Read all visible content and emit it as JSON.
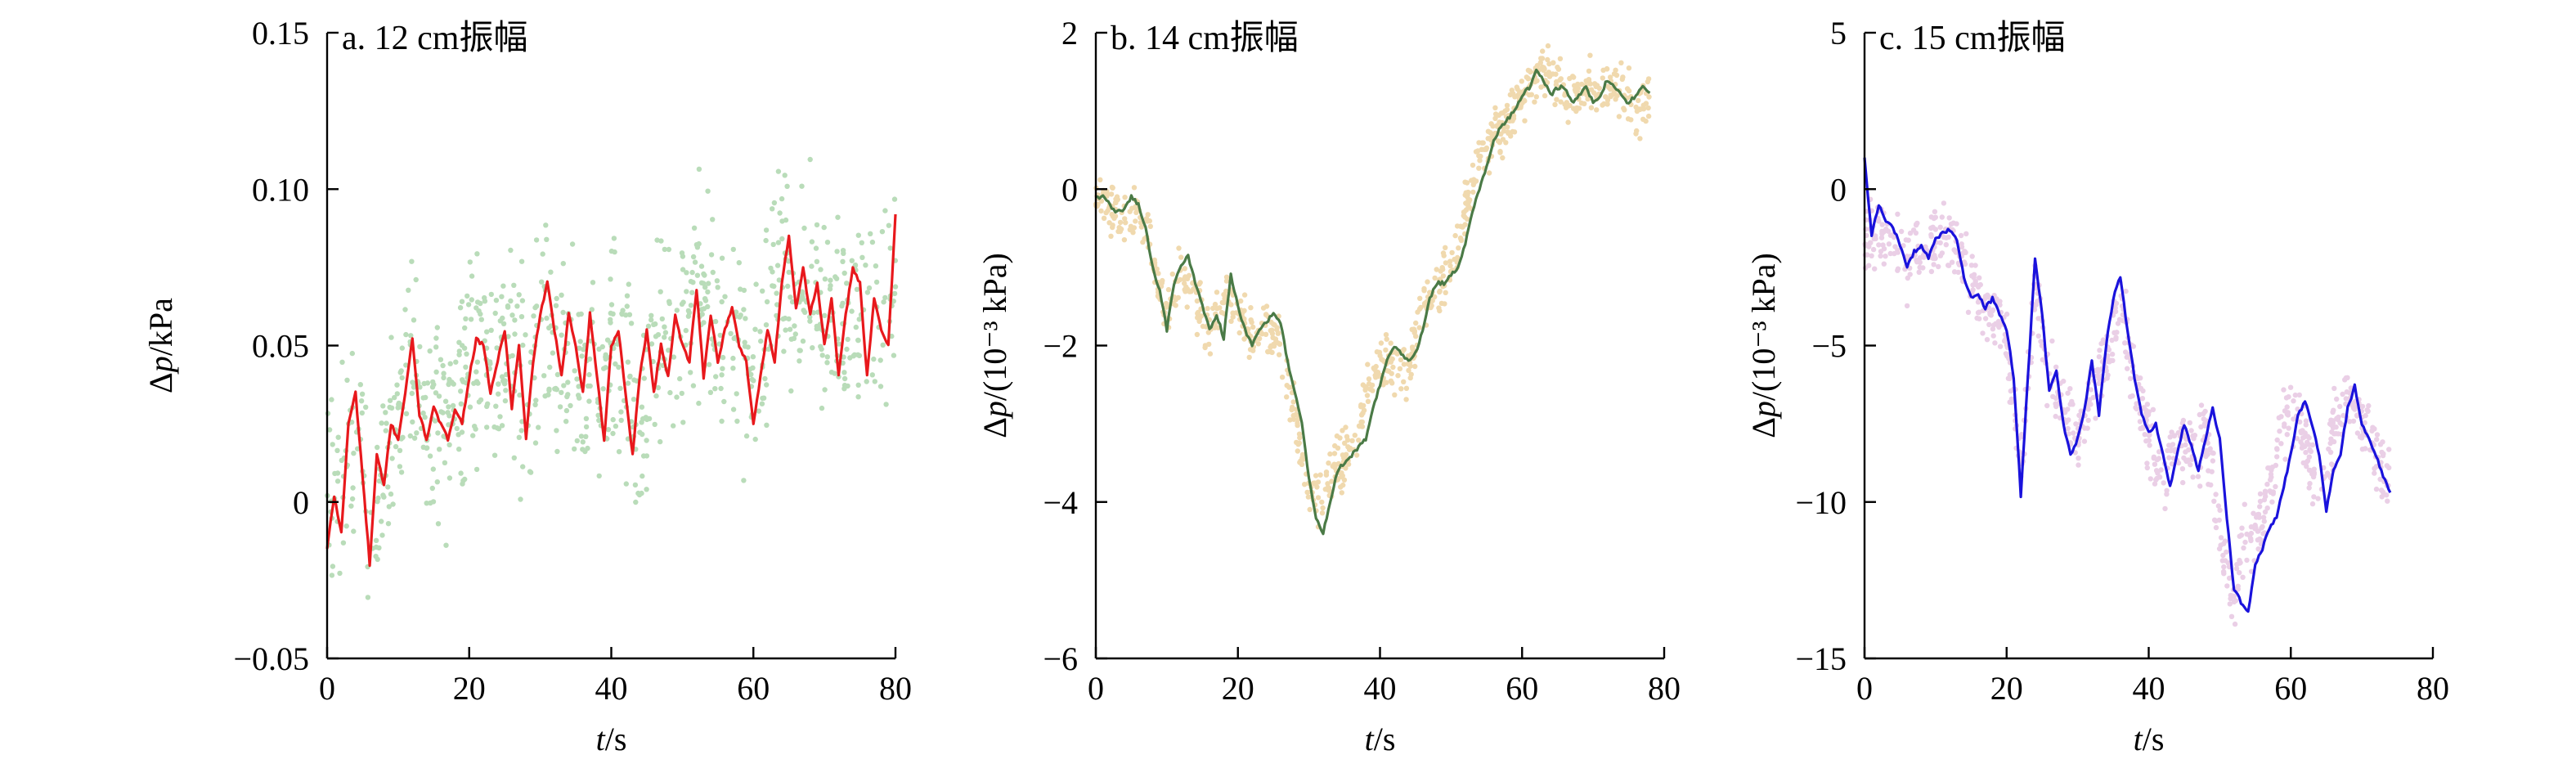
{
  "chart_data": [
    {
      "type": "line",
      "title": "a. 12 cm振幅",
      "xlabel": "t/s",
      "ylabel": "Δp/kPa",
      "xlim": [
        0,
        80
      ],
      "ylim": [
        -0.05,
        0.15
      ],
      "xticks": [
        0,
        20,
        40,
        60,
        80
      ],
      "xtick_labels": [
        "0",
        "20",
        "40",
        "60",
        "80"
      ],
      "yticks": [
        -0.05,
        0,
        0.05,
        0.1,
        0.15
      ],
      "ytick_labels": [
        "−0.05",
        "0",
        "0.05",
        "0.10",
        "0.15"
      ],
      "grid": false,
      "series": [
        {
          "kind": "raw-scatter",
          "color": "#b9dcb9",
          "x": [
            0,
            2,
            4,
            5,
            6,
            8,
            10,
            12,
            14,
            16,
            18,
            20,
            22,
            24,
            26,
            28,
            30,
            32,
            34,
            36,
            38,
            40,
            42,
            44,
            46,
            48,
            50,
            52,
            54,
            56,
            58,
            60,
            62,
            64,
            66,
            68,
            70,
            72,
            74,
            76,
            78,
            80
          ],
          "y": [
            0.0,
            0.01,
            0.025,
            0.02,
            -0.02,
            0.01,
            0.03,
            0.05,
            0.02,
            0.03,
            0.025,
            0.045,
            0.05,
            0.04,
            0.055,
            0.03,
            0.06,
            0.05,
            0.04,
            0.045,
            0.035,
            0.05,
            0.04,
            0.02,
            0.05,
            0.06,
            0.05,
            0.07,
            0.06,
            0.055,
            0.05,
            0.04,
            0.065,
            0.075,
            0.06,
            0.07,
            0.065,
            0.055,
            0.06,
            0.065,
            0.06,
            0.07
          ],
          "spread": 0.035
        },
        {
          "kind": "smoothed",
          "color": "#e8181c",
          "x": [
            0,
            1,
            2,
            3,
            4,
            5,
            6,
            7,
            8,
            9,
            10,
            11,
            12,
            13,
            14,
            15,
            16,
            17,
            18,
            19,
            20,
            21,
            22,
            23,
            24,
            25,
            26,
            27,
            28,
            29,
            30,
            31,
            32,
            33,
            34,
            35,
            36,
            37,
            38,
            39,
            40,
            41,
            42,
            43,
            44,
            45,
            46,
            47,
            48,
            49,
            50,
            51,
            52,
            53,
            54,
            55,
            56,
            57,
            58,
            59,
            60,
            61,
            62,
            63,
            64,
            65,
            66,
            67,
            68,
            69,
            70,
            71,
            72,
            73,
            74,
            75,
            76,
            77,
            78,
            79,
            80
          ],
          "y": [
            -0.015,
            0.002,
            -0.01,
            0.025,
            0.035,
            0.008,
            -0.02,
            0.015,
            0.005,
            0.025,
            0.02,
            0.035,
            0.052,
            0.028,
            0.02,
            0.03,
            0.025,
            0.02,
            0.03,
            0.025,
            0.04,
            0.052,
            0.05,
            0.035,
            0.045,
            0.055,
            0.03,
            0.05,
            0.02,
            0.045,
            0.06,
            0.07,
            0.055,
            0.04,
            0.06,
            0.05,
            0.035,
            0.06,
            0.04,
            0.02,
            0.05,
            0.055,
            0.035,
            0.015,
            0.04,
            0.055,
            0.035,
            0.05,
            0.04,
            0.06,
            0.05,
            0.045,
            0.068,
            0.04,
            0.06,
            0.045,
            0.055,
            0.062,
            0.05,
            0.045,
            0.025,
            0.04,
            0.055,
            0.045,
            0.07,
            0.085,
            0.062,
            0.075,
            0.06,
            0.07,
            0.05,
            0.065,
            0.04,
            0.06,
            0.075,
            0.07,
            0.04,
            0.065,
            0.055,
            0.05,
            0.092
          ]
        }
      ]
    },
    {
      "type": "line",
      "title": "b. 14 cm振幅",
      "xlabel": "t/s",
      "ylabel": "Δp/(10⁻³ kPa)",
      "xlim": [
        0,
        80
      ],
      "ylim": [
        -6,
        2
      ],
      "xticks": [
        0,
        20,
        40,
        60,
        80
      ],
      "xtick_labels": [
        "0",
        "20",
        "40",
        "60",
        "80"
      ],
      "yticks": [
        -6,
        -4,
        -2,
        0,
        2
      ],
      "ytick_labels": [
        "−6",
        "−4",
        "−2",
        "0",
        "2"
      ],
      "grid": false,
      "series": [
        {
          "kind": "raw-scatter",
          "color": "#f0d9ae",
          "x": [
            0,
            2,
            4,
            6,
            8,
            10,
            12,
            14,
            16,
            18,
            20,
            22,
            24,
            26,
            28,
            30,
            32,
            34,
            36,
            38,
            40,
            42,
            44,
            46,
            48,
            50,
            52,
            54,
            56,
            58,
            60,
            62,
            64,
            66,
            68,
            70,
            72,
            74,
            76,
            78
          ],
          "y": [
            -0.05,
            -0.2,
            -0.4,
            -0.3,
            -0.8,
            -1.7,
            -1.1,
            -1.4,
            -1.8,
            -1.4,
            -1.6,
            -1.9,
            -1.8,
            -2.0,
            -2.8,
            -4.0,
            -3.8,
            -3.5,
            -3.3,
            -2.7,
            -2.2,
            -2.3,
            -2.3,
            -1.4,
            -1.2,
            -1.1,
            -0.3,
            0.4,
            0.7,
            0.9,
            1.2,
            1.5,
            1.5,
            1.2,
            1.3,
            1.3,
            1.2,
            1.4,
            1.0,
            1.2
          ],
          "spread": 0.35
        },
        {
          "kind": "smoothed",
          "color": "#4a7a46",
          "x": [
            0,
            1,
            2,
            3,
            4,
            5,
            6,
            7,
            8,
            9,
            10,
            11,
            12,
            13,
            14,
            15,
            16,
            17,
            18,
            19,
            20,
            21,
            22,
            23,
            24,
            25,
            26,
            27,
            28,
            29,
            30,
            31,
            32,
            33,
            34,
            35,
            36,
            37,
            38,
            39,
            40,
            41,
            42,
            43,
            44,
            45,
            46,
            47,
            48,
            49,
            50,
            51,
            52,
            53,
            54,
            55,
            56,
            57,
            58,
            59,
            60,
            61,
            62,
            63,
            64,
            65,
            66,
            67,
            68,
            69,
            70,
            71,
            72,
            73,
            74,
            75,
            76,
            77,
            78
          ],
          "y": [
            -0.1,
            -0.1,
            -0.2,
            -0.3,
            -0.25,
            -0.1,
            -0.2,
            -0.5,
            -1.0,
            -1.3,
            -1.8,
            -1.2,
            -1.0,
            -0.85,
            -1.2,
            -1.5,
            -1.8,
            -1.6,
            -1.9,
            -1.1,
            -1.5,
            -1.8,
            -2.0,
            -1.8,
            -1.7,
            -1.6,
            -1.7,
            -2.2,
            -2.6,
            -3.0,
            -3.7,
            -4.2,
            -4.4,
            -4.0,
            -3.6,
            -3.5,
            -3.4,
            -3.3,
            -3.2,
            -2.8,
            -2.5,
            -2.2,
            -2.0,
            -2.1,
            -2.2,
            -2.1,
            -1.8,
            -1.4,
            -1.2,
            -1.2,
            -1.1,
            -1.0,
            -0.7,
            -0.3,
            0.0,
            0.3,
            0.6,
            0.8,
            0.9,
            1.0,
            1.2,
            1.3,
            1.5,
            1.4,
            1.2,
            1.3,
            1.3,
            1.1,
            1.2,
            1.3,
            1.1,
            1.2,
            1.4,
            1.3,
            1.2,
            1.1,
            1.2,
            1.3,
            1.25
          ]
        }
      ]
    },
    {
      "type": "line",
      "title": "c. 15 cm振幅",
      "xlabel": "t/s",
      "ylabel": "Δp/(10⁻³ kPa)",
      "xlim": [
        0,
        80
      ],
      "ylim": [
        -15,
        5
      ],
      "xticks": [
        0,
        20,
        40,
        60,
        80
      ],
      "xtick_labels": [
        "0",
        "20",
        "40",
        "60",
        "80"
      ],
      "yticks": [
        -15,
        -10,
        -5,
        0,
        5
      ],
      "ytick_labels": [
        "−15",
        "−10",
        "−5",
        "0",
        "5"
      ],
      "grid": false,
      "series": [
        {
          "kind": "raw-scatter",
          "color": "#eacfe6",
          "x": [
            0,
            2,
            4,
            6,
            8,
            10,
            12,
            14,
            16,
            18,
            20,
            22,
            24,
            26,
            28,
            30,
            32,
            34,
            36,
            38,
            40,
            42,
            44,
            46,
            48,
            50,
            52,
            54,
            56,
            58,
            60,
            62,
            64,
            66,
            68,
            70,
            72,
            74
          ],
          "y": [
            -1.5,
            -1.2,
            -1.8,
            -2.2,
            -2.0,
            -1.6,
            -1.5,
            -2.5,
            -3.5,
            -3.8,
            -5.0,
            -9.0,
            -3.0,
            -6.0,
            -7.0,
            -8.0,
            -6.5,
            -5.5,
            -3.5,
            -6.5,
            -8.0,
            -9.0,
            -8.0,
            -8.5,
            -8.0,
            -11.0,
            -13.0,
            -11.0,
            -10.5,
            -8.5,
            -7.0,
            -8.0,
            -10.0,
            -7.5,
            -6.5,
            -7.5,
            -8.5,
            -9.5
          ],
          "spread": 1.2
        },
        {
          "kind": "smoothed",
          "color": "#1a12dc",
          "x": [
            0,
            1,
            2,
            3,
            4,
            5,
            6,
            7,
            8,
            9,
            10,
            11,
            12,
            13,
            14,
            15,
            16,
            17,
            18,
            19,
            20,
            21,
            22,
            23,
            24,
            25,
            26,
            27,
            28,
            29,
            30,
            31,
            32,
            33,
            34,
            35,
            36,
            37,
            38,
            39,
            40,
            41,
            42,
            43,
            44,
            45,
            46,
            47,
            48,
            49,
            50,
            51,
            52,
            53,
            54,
            55,
            56,
            57,
            58,
            59,
            60,
            61,
            62,
            63,
            64,
            65,
            66,
            67,
            68,
            69,
            70,
            71,
            72,
            73,
            74
          ],
          "y": [
            1.0,
            -1.5,
            -0.5,
            -1.0,
            -1.2,
            -1.8,
            -2.5,
            -2.0,
            -1.8,
            -2.2,
            -1.6,
            -1.4,
            -1.3,
            -1.6,
            -2.8,
            -3.5,
            -3.4,
            -3.8,
            -3.5,
            -4.0,
            -4.5,
            -6.0,
            -9.8,
            -6.0,
            -2.2,
            -4.0,
            -6.5,
            -5.8,
            -7.5,
            -8.5,
            -8.0,
            -7.0,
            -5.5,
            -7.2,
            -5.0,
            -3.5,
            -2.8,
            -4.5,
            -6.0,
            -7.2,
            -7.8,
            -7.5,
            -8.5,
            -9.5,
            -8.5,
            -7.5,
            -8.2,
            -9.0,
            -8.0,
            -7.0,
            -8.0,
            -10.5,
            -12.8,
            -13.2,
            -13.5,
            -12.0,
            -11.5,
            -10.8,
            -10.5,
            -9.5,
            -8.5,
            -7.2,
            -6.8,
            -7.5,
            -8.5,
            -10.3,
            -9.0,
            -8.5,
            -7.0,
            -6.3,
            -7.5,
            -8.0,
            -8.5,
            -9.2,
            -9.7
          ]
        }
      ]
    }
  ]
}
